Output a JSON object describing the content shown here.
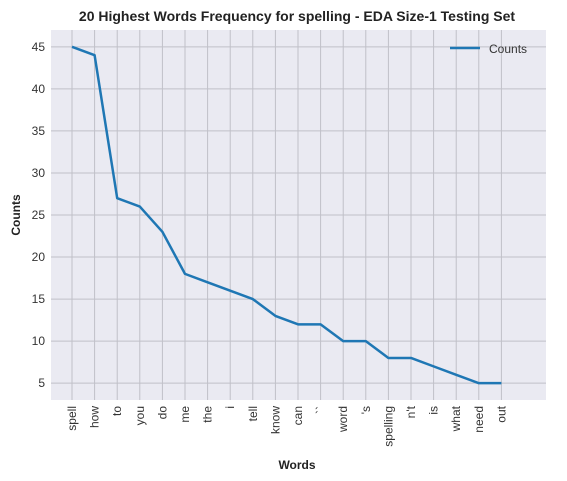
{
  "chart_data": {
    "type": "line",
    "title": "20 Highest Words Frequency for spelling - EDA Size-1 Testing Set",
    "xlabel": "Words",
    "ylabel": "Counts",
    "categories": [
      "spell",
      "how",
      "to",
      "you",
      "do",
      "me",
      "the",
      "i",
      "tell",
      "know",
      "can",
      "``",
      "word",
      "'s",
      "spelling",
      "n't",
      "is",
      "what",
      "need",
      "out"
    ],
    "series": [
      {
        "name": "Counts",
        "values": [
          45,
          44,
          27,
          26,
          23,
          18,
          17,
          16,
          15,
          13,
          12,
          12,
          10,
          10,
          8,
          8,
          7,
          6,
          5,
          5
        ]
      }
    ],
    "ylim": [
      3.0,
      47.0
    ],
    "yticks": [
      5,
      10,
      15,
      20,
      25,
      30,
      35,
      40,
      45
    ],
    "grid": true,
    "legend_position": "top-right",
    "colors": {
      "line": "#1f77b4",
      "background": "#eaeaf2",
      "grid": "#c0c0c8"
    }
  }
}
